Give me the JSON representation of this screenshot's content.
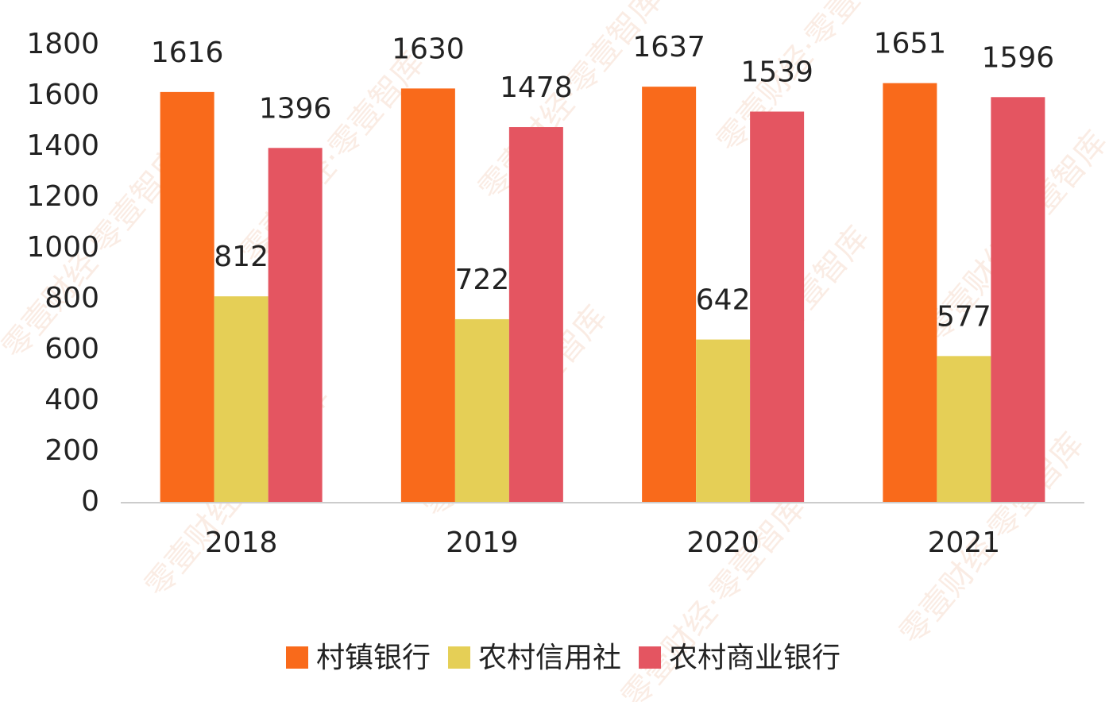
{
  "chart_data": {
    "type": "bar",
    "watermark": "零壹财经·零壹智库",
    "categories": [
      "2018",
      "2019",
      "2020",
      "2021"
    ],
    "series": [
      {
        "name": "村镇银行",
        "color": "#f96a1b",
        "values": [
          1616,
          1630,
          1637,
          1651
        ]
      },
      {
        "name": "农村信用社",
        "color": "#e5cf56",
        "values": [
          812,
          722,
          642,
          577
        ]
      },
      {
        "name": "农村商业银行",
        "color": "#e45561",
        "values": [
          1396,
          1478,
          1539,
          1596
        ]
      }
    ],
    "ylim": [
      0,
      1800
    ],
    "yticks": [
      0,
      200,
      400,
      600,
      800,
      1000,
      1200,
      1400,
      1600,
      1800
    ],
    "grid": false,
    "legend": "bottom"
  }
}
